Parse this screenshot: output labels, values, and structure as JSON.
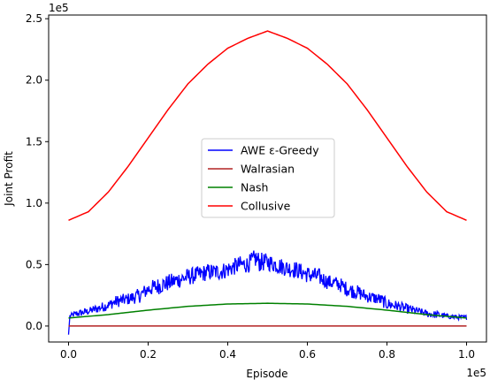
{
  "chart_data": {
    "type": "line",
    "xlabel": "Episode",
    "ylabel": "Joint Profit",
    "x_offset_label": "1e5",
    "y_offset_label": "1e5",
    "xlim": [
      -0.05,
      1.05
    ],
    "ylim": [
      -0.13,
      2.53
    ],
    "x_ticks": [
      0.0,
      0.2,
      0.4,
      0.6,
      0.8,
      1.0
    ],
    "x_tick_labels": [
      "0.0",
      "0.2",
      "0.4",
      "0.6",
      "0.8",
      "1.0"
    ],
    "y_ticks": [
      0.0,
      0.5,
      1.0,
      1.5,
      2.0,
      2.5
    ],
    "y_tick_labels": [
      "0.0",
      "0.5",
      "1.0",
      "1.5",
      "2.0",
      "2.5"
    ],
    "grid": false,
    "legend_position": "center",
    "series": [
      {
        "name": "AWE ε-Greedy",
        "color": "#0000ff",
        "x": [
          0.0,
          0.002,
          0.01,
          0.02,
          0.05,
          0.08,
          0.1,
          0.12,
          0.15,
          0.18,
          0.2,
          0.22,
          0.25,
          0.28,
          0.3,
          0.33,
          0.35,
          0.38,
          0.4,
          0.43,
          0.45,
          0.47,
          0.48,
          0.5,
          0.52,
          0.55,
          0.57,
          0.6,
          0.63,
          0.65,
          0.68,
          0.7,
          0.73,
          0.75,
          0.78,
          0.8,
          0.83,
          0.85,
          0.88,
          0.9,
          0.93,
          0.95,
          0.98,
          1.0
        ],
        "y": [
          -0.07,
          0.08,
          0.09,
          0.1,
          0.12,
          0.15,
          0.17,
          0.2,
          0.22,
          0.25,
          0.3,
          0.32,
          0.35,
          0.38,
          0.4,
          0.42,
          0.44,
          0.44,
          0.46,
          0.5,
          0.5,
          0.55,
          0.52,
          0.52,
          0.5,
          0.47,
          0.46,
          0.42,
          0.4,
          0.36,
          0.34,
          0.3,
          0.27,
          0.24,
          0.22,
          0.18,
          0.16,
          0.14,
          0.12,
          0.1,
          0.09,
          0.08,
          0.07,
          0.07
        ],
        "noise_amplitude": [
          0.0,
          0.02,
          0.02,
          0.03,
          0.03,
          0.04,
          0.04,
          0.05,
          0.05,
          0.06,
          0.06,
          0.07,
          0.07,
          0.07,
          0.07,
          0.07,
          0.07,
          0.07,
          0.07,
          0.07,
          0.07,
          0.08,
          0.08,
          0.07,
          0.07,
          0.07,
          0.07,
          0.07,
          0.07,
          0.06,
          0.06,
          0.06,
          0.06,
          0.05,
          0.05,
          0.05,
          0.04,
          0.04,
          0.03,
          0.03,
          0.03,
          0.02,
          0.02,
          0.02
        ]
      },
      {
        "name": "Walrasian",
        "color": "#b22222",
        "x": [
          0.0,
          1.0
        ],
        "y": [
          0.0,
          0.0
        ]
      },
      {
        "name": "Nash",
        "color": "#008000",
        "x": [
          0.0,
          0.1,
          0.2,
          0.3,
          0.4,
          0.5,
          0.6,
          0.7,
          0.8,
          0.9,
          1.0
        ],
        "y": [
          0.065,
          0.093,
          0.129,
          0.16,
          0.179,
          0.185,
          0.179,
          0.16,
          0.129,
          0.093,
          0.065
        ]
      },
      {
        "name": "Collusive",
        "color": "#ff0000",
        "x": [
          0.0,
          0.05,
          0.1,
          0.15,
          0.2,
          0.25,
          0.3,
          0.35,
          0.4,
          0.45,
          0.5,
          0.55,
          0.6,
          0.65,
          0.7,
          0.75,
          0.8,
          0.85,
          0.9,
          0.95,
          1.0
        ],
        "y": [
          0.86,
          0.93,
          1.09,
          1.3,
          1.53,
          1.76,
          1.97,
          2.13,
          2.26,
          2.34,
          2.4,
          2.34,
          2.26,
          2.13,
          1.97,
          1.76,
          1.53,
          1.3,
          1.09,
          0.93,
          0.86
        ]
      }
    ]
  }
}
